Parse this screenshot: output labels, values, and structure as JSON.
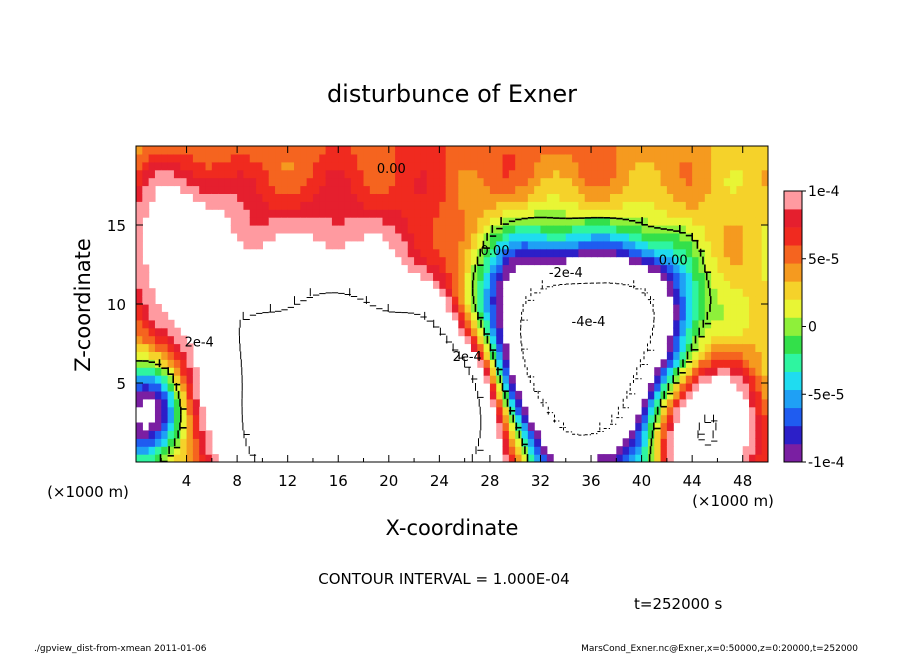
{
  "chart_data": {
    "type": "heatmap",
    "title": "disturbunce of Exner",
    "xlabel": "X-coordinate",
    "ylabel": "Z-coordinate",
    "x_unit_left": "(×1000 m)",
    "x_unit_right": "(×1000 m)",
    "xlim": [
      0,
      50
    ],
    "ylim": [
      0,
      20
    ],
    "x_ticks": [
      4,
      8,
      12,
      16,
      20,
      24,
      28,
      32,
      36,
      40,
      44,
      48
    ],
    "y_ticks": [
      5,
      10,
      15
    ],
    "colorbar": {
      "vmin": -0.0001,
      "vmax": 0.0001,
      "tick_labels": [
        "1e-4",
        "5e-5",
        "0",
        "-5e-5",
        "-1e-4"
      ],
      "tick_values": [
        0.0001,
        5e-05,
        0,
        -5e-05,
        -0.0001
      ],
      "colors": [
        "#7a1fa2",
        "#2c1fc8",
        "#1f5cf0",
        "#1fa0f5",
        "#1fdcf0",
        "#2ef5a0",
        "#33e04a",
        "#8ef03a",
        "#e8f535",
        "#f5d22a",
        "#f59a1f",
        "#f5641f",
        "#f02a1f",
        "#e51f2e",
        "#ff9aa0"
      ]
    },
    "contour_labels": [
      {
        "text": "0.00",
        "x": 20.2,
        "z": 18.3
      },
      {
        "text": "0.00",
        "x": 28.4,
        "z": 13.1
      },
      {
        "text": "0.00",
        "x": 42.5,
        "z": 12.5
      },
      {
        "text": "-2e-4",
        "x": 34.0,
        "z": 11.7
      },
      {
        "text": "-4e-4",
        "x": 35.8,
        "z": 8.6
      },
      {
        "text": "2e-4",
        "x": 5.0,
        "z": 7.3
      },
      {
        "text": "2e-4",
        "x": 26.2,
        "z": 6.4
      }
    ],
    "fields": [
      {
        "x": 26,
        "z": 20,
        "v": 6e-05,
        "r": 26
      },
      {
        "x": 3,
        "z": 14,
        "v": 0.00011,
        "r": 5
      },
      {
        "x": 30,
        "z": 10,
        "v": -0.00012,
        "r": 5
      },
      {
        "x": 40,
        "z": 10,
        "v": -0.00013,
        "r": 4
      },
      {
        "x": 35,
        "z": 6,
        "v": -0.0004,
        "r": 6
      },
      {
        "x": 14,
        "z": 4,
        "v": 0.0003,
        "r": 8
      },
      {
        "x": 24,
        "z": 3,
        "v": 0.00028,
        "r": 6
      },
      {
        "x": 45,
        "z": 2,
        "v": 0.0002,
        "r": 4
      },
      {
        "x": 1,
        "z": 3,
        "v": -0.00015,
        "r": 3
      },
      {
        "x": 17,
        "z": 6,
        "v": 0.0001,
        "r": 2
      },
      {
        "x": 6,
        "z": 10,
        "v": 4e-05,
        "r": 3
      }
    ]
  },
  "footer": {
    "contour_interval": "CONTOUR INTERVAL = 1.000E-04",
    "time": "t=252000  s",
    "left_note": "./gpview_dist-from-xmean   2011-01-06",
    "right_note": "MarsCond_Exner.nc@Exner,x=0:50000,z=0:20000,t=252000"
  }
}
